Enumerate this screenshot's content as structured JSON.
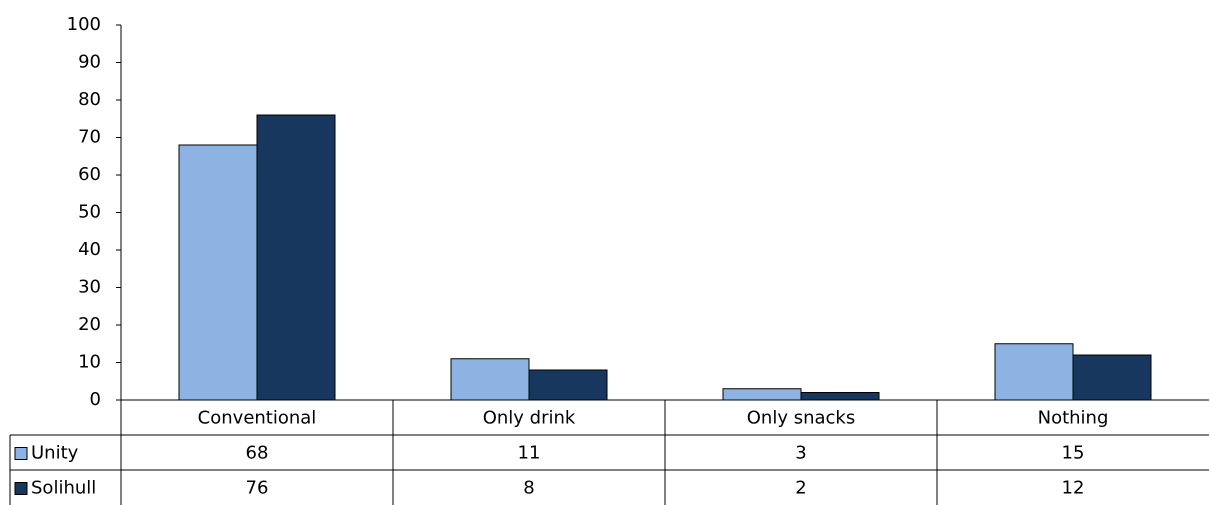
{
  "chart_data": {
    "type": "bar",
    "categories": [
      "Conventional",
      "Only drink",
      "Only snacks",
      "Nothing"
    ],
    "series": [
      {
        "name": "Unity",
        "color": "#8db3e2",
        "values": [
          68,
          11,
          3,
          15
        ]
      },
      {
        "name": "Solihull",
        "color": "#17375e",
        "values": [
          76,
          8,
          2,
          12
        ]
      }
    ],
    "ylim": [
      0,
      100
    ],
    "yticks": [
      0,
      10,
      20,
      30,
      40,
      50,
      60,
      70,
      80,
      90,
      100
    ],
    "grid": false
  }
}
